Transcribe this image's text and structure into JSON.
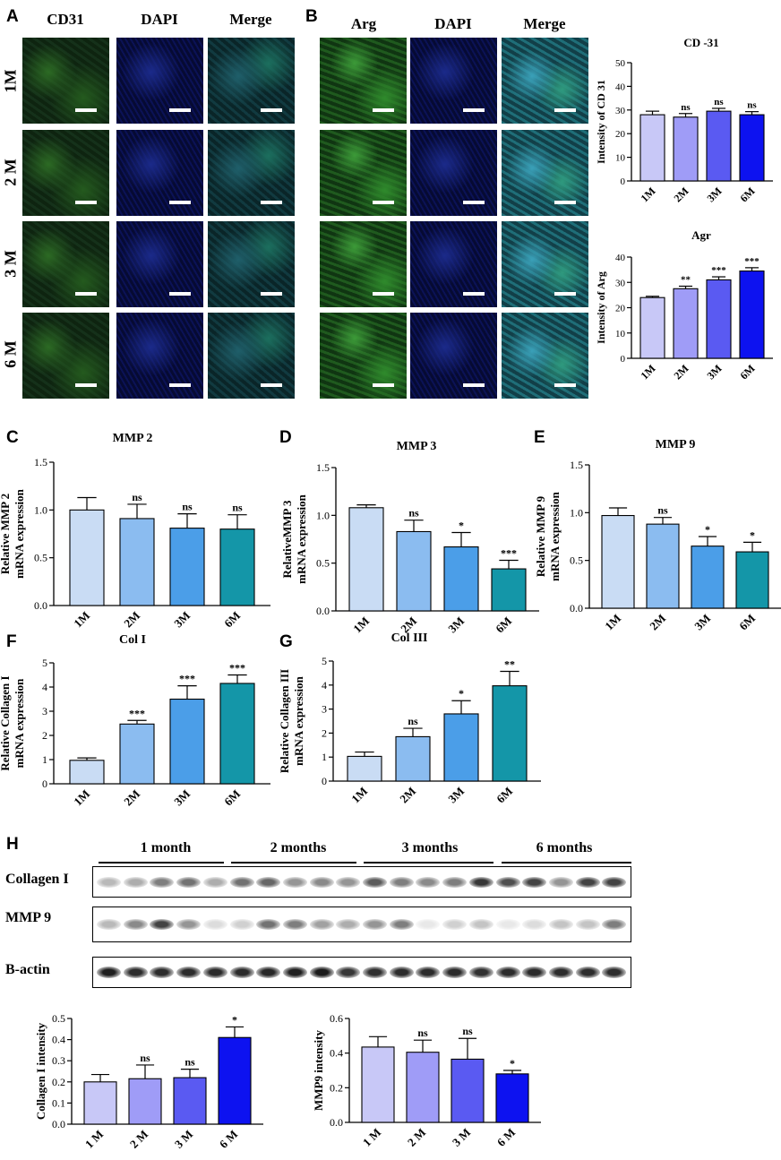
{
  "panel_labels": [
    "A",
    "B",
    "C",
    "D",
    "E",
    "F",
    "G",
    "H"
  ],
  "panelA": {
    "headers": [
      "CD31",
      "DAPI",
      "Merge"
    ],
    "rows": [
      "1M",
      "2 M",
      "3 M",
      "6 M"
    ]
  },
  "panelB": {
    "headers": [
      "Arg",
      "DAPI",
      "Merge"
    ]
  },
  "colors": {
    "purple": [
      "#c8c8f7",
      "#9f9cf7",
      "#5a5af2",
      "#0d12f0"
    ],
    "teal": [
      "#c9dcf4",
      "#8bbcf0",
      "#4b9ee8",
      "#1496a8"
    ]
  },
  "chart_data": [
    {
      "id": "cd31",
      "type": "bar",
      "title": "CD -31",
      "ylabel": "Intensity of CD 31",
      "categories": [
        "1M",
        "2M",
        "3M",
        "6M"
      ],
      "values": [
        28,
        27,
        29.5,
        28
      ],
      "errors": [
        1.5,
        1.5,
        1.2,
        1.3
      ],
      "annotations": [
        "",
        "ns",
        "ns",
        "ns"
      ],
      "ylim": [
        0,
        50
      ],
      "yticks": [
        0,
        10,
        20,
        30,
        40,
        50
      ]
    },
    {
      "id": "agr",
      "type": "bar",
      "title": "Agr",
      "ylabel": "Intensity of Arg",
      "categories": [
        "1M",
        "2M",
        "3M",
        "6M"
      ],
      "values": [
        24,
        27.5,
        31,
        34.5
      ],
      "errors": [
        0.5,
        1,
        1.2,
        1.3
      ],
      "annotations": [
        "",
        "**",
        "***",
        "***"
      ],
      "ylim": [
        0,
        40
      ],
      "yticks": [
        0,
        10,
        20,
        30,
        40
      ]
    },
    {
      "id": "mmp2",
      "type": "bar",
      "title": "MMP 2",
      "ylabel": [
        "Relative MMP 2",
        "mRNA expression"
      ],
      "categories": [
        "1M",
        "2M",
        "3M",
        "6M"
      ],
      "values": [
        1.0,
        0.91,
        0.81,
        0.8
      ],
      "errors": [
        0.13,
        0.15,
        0.15,
        0.15
      ],
      "annotations": [
        "",
        "ns",
        "ns",
        "ns"
      ],
      "ylim": [
        0,
        1.5
      ],
      "yticks": [
        "0.0",
        "0.5",
        "1.0",
        "1.5"
      ]
    },
    {
      "id": "mmp3",
      "type": "bar",
      "title": "MMP 3",
      "ylabel": [
        "RelativeMMP 3",
        "mRNA expression"
      ],
      "categories": [
        "1M",
        "2M",
        "3M",
        "6M"
      ],
      "values": [
        1.08,
        0.83,
        0.67,
        0.44
      ],
      "errors": [
        0.03,
        0.12,
        0.15,
        0.09
      ],
      "annotations": [
        "",
        "ns",
        "*",
        "***"
      ],
      "ylim": [
        0,
        1.5
      ],
      "yticks": [
        "0.0",
        "0.5",
        "1.0",
        "1.5"
      ]
    },
    {
      "id": "mmp9",
      "type": "bar",
      "title": "MMP 9",
      "ylabel": [
        "Relative MMP 9",
        "mRNA expression"
      ],
      "categories": [
        "1M",
        "2M",
        "3M",
        "6M"
      ],
      "values": [
        0.97,
        0.88,
        0.65,
        0.59
      ],
      "errors": [
        0.08,
        0.07,
        0.1,
        0.1
      ],
      "annotations": [
        "",
        "ns",
        "*",
        "*"
      ],
      "ylim": [
        0,
        1.5
      ],
      "yticks": [
        "0.0",
        "0.5",
        "1.0",
        "1.5"
      ]
    },
    {
      "id": "col1",
      "type": "bar",
      "title": "Col I",
      "ylabel": [
        "Relative Collagen I",
        "mRNA expression"
      ],
      "categories": [
        "1M",
        "2M",
        "3M",
        "6M"
      ],
      "values": [
        0.97,
        2.47,
        3.5,
        4.15
      ],
      "errors": [
        0.1,
        0.15,
        0.55,
        0.35
      ],
      "annotations": [
        "",
        "***",
        "***",
        "***"
      ],
      "ylim": [
        0,
        5
      ],
      "yticks": [
        "0",
        "1",
        "2",
        "3",
        "4",
        "5"
      ]
    },
    {
      "id": "col3",
      "type": "bar",
      "title": "Col III",
      "ylabel": [
        "Relative Collagen III",
        "mRNA expression"
      ],
      "categories": [
        "1M",
        "2M",
        "3M",
        "6M"
      ],
      "values": [
        1.03,
        1.85,
        2.8,
        3.97
      ],
      "errors": [
        0.18,
        0.35,
        0.55,
        0.6
      ],
      "annotations": [
        "",
        "ns",
        "*",
        "**"
      ],
      "ylim": [
        0,
        5
      ],
      "yticks": [
        "0",
        "1",
        "2",
        "3",
        "4",
        "5"
      ]
    },
    {
      "id": "colint",
      "type": "bar",
      "title": "",
      "ylabel": "Collagen I intensity",
      "categories": [
        "1 M",
        "2 M",
        "3 M",
        "6 M"
      ],
      "values": [
        0.2,
        0.215,
        0.22,
        0.41
      ],
      "errors": [
        0.035,
        0.065,
        0.04,
        0.05
      ],
      "annotations": [
        "",
        "ns",
        "ns",
        "*"
      ],
      "ylim": [
        0,
        0.5
      ],
      "yticks": [
        "0.0",
        "0.1",
        "0.2",
        "0.3",
        "0.4",
        "0.5"
      ]
    },
    {
      "id": "mmp9int",
      "type": "bar",
      "title": "",
      "ylabel": "MMP9 intensity",
      "categories": [
        "1 M",
        "2 M",
        "3 M",
        "6 M"
      ],
      "values": [
        0.435,
        0.405,
        0.365,
        0.28
      ],
      "errors": [
        0.06,
        0.07,
        0.12,
        0.02
      ],
      "annotations": [
        "",
        "ns",
        "ns",
        "*"
      ],
      "ylim": [
        0,
        0.6
      ],
      "yticks": [
        "0.0",
        "0.2",
        "0.4",
        "0.6"
      ]
    }
  ],
  "blot": {
    "months": [
      "1 month",
      "2 months",
      "3 months",
      "6 months"
    ],
    "rows": [
      "Collagen I",
      "MMP 9",
      "B-actin"
    ]
  }
}
